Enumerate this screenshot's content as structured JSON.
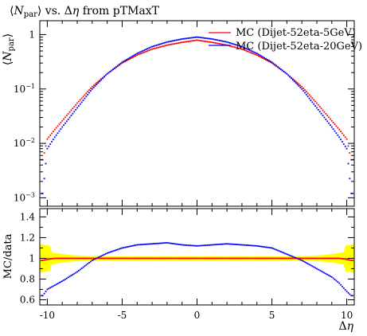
{
  "chart_data": {
    "type": "scatter",
    "title_parts": {
      "pre": "⟨",
      "n": "N",
      "sub": "par",
      "post": "⟩ vs. Δ",
      "eta": "η",
      "tail": " from pTMaxT"
    },
    "main_panel": {
      "ylabel_parts": {
        "pre": "⟨",
        "n": "N",
        "sub": "par",
        "post": "⟩"
      },
      "yscale": "log",
      "ylim": [
        0.0007,
        1.8
      ],
      "y_tick_labels": [
        {
          "value": 1,
          "mantissa": "1",
          "exp": ""
        },
        {
          "value": 0.1,
          "mantissa": "10",
          "exp": "−1"
        },
        {
          "value": 0.01,
          "mantissa": "10",
          "exp": "−2"
        },
        {
          "value": 0.001,
          "mantissa": "10",
          "exp": "−3"
        }
      ]
    },
    "ratio_panel": {
      "ylabel": "MC/data",
      "ylim": [
        0.55,
        1.48
      ],
      "y_ticks": [
        0.6,
        0.8,
        1,
        1.2,
        1.4
      ],
      "y_tick_labels": [
        "0.6",
        "0.8",
        "1",
        "1.2",
        "1.4"
      ],
      "band_color": "#ffff00"
    },
    "xlabel_parts": {
      "delta": "Δ",
      "eta": "η"
    },
    "xlim": [
      -10.5,
      10.5
    ],
    "x_ticks": [
      -10,
      -5,
      0,
      5,
      10
    ],
    "x_tick_labels": [
      "-10",
      "-5",
      "0",
      "5",
      "10"
    ],
    "legend_position": "top-right",
    "series": [
      {
        "name": "MC (Dijet-52eta-5GeV)",
        "color": "#ff0000",
        "x": [
          -10.3,
          -10,
          -9.5,
          -9,
          -8,
          -7,
          -6,
          -5,
          -4,
          -3,
          -2,
          -1,
          0,
          1,
          2,
          3,
          4,
          5,
          6,
          7,
          8,
          9,
          9.5,
          10,
          10.3
        ],
        "y": [
          0.005,
          0.012,
          0.018,
          0.026,
          0.055,
          0.11,
          0.19,
          0.3,
          0.42,
          0.54,
          0.64,
          0.72,
          0.79,
          0.72,
          0.64,
          0.54,
          0.42,
          0.3,
          0.19,
          0.11,
          0.055,
          0.026,
          0.018,
          0.012,
          0.005
        ],
        "ratio": [
          0.98,
          0.99,
          1.0,
          1.0,
          1.0,
          1.0,
          1.0,
          1.0,
          1.0,
          1.0,
          1.0,
          1.0,
          1.0,
          1.0,
          1.0,
          1.0,
          1.0,
          1.0,
          1.0,
          1.0,
          1.0,
          1.0,
          1.0,
          0.99,
          0.98
        ]
      },
      {
        "name": "MC (Dijet-52eta-20GeV)",
        "color": "#0000ff",
        "x": [
          -10.3,
          -10,
          -9.5,
          -9,
          -8,
          -7,
          -6,
          -5,
          -4,
          -3,
          -2,
          -1,
          0,
          1,
          2,
          3,
          4,
          5,
          6,
          7,
          8,
          9,
          9.5,
          10,
          10.3
        ],
        "y": [
          0.0012,
          0.008,
          0.013,
          0.02,
          0.045,
          0.1,
          0.19,
          0.31,
          0.45,
          0.6,
          0.73,
          0.83,
          0.9,
          0.83,
          0.73,
          0.6,
          0.45,
          0.31,
          0.19,
          0.1,
          0.045,
          0.02,
          0.013,
          0.008,
          0.0012
        ],
        "ratio": [
          0.64,
          0.7,
          0.74,
          0.78,
          0.87,
          0.98,
          1.05,
          1.1,
          1.13,
          1.14,
          1.15,
          1.13,
          1.12,
          1.13,
          1.14,
          1.13,
          1.12,
          1.1,
          1.04,
          0.98,
          0.9,
          0.82,
          0.76,
          0.68,
          0.64
        ]
      }
    ]
  }
}
